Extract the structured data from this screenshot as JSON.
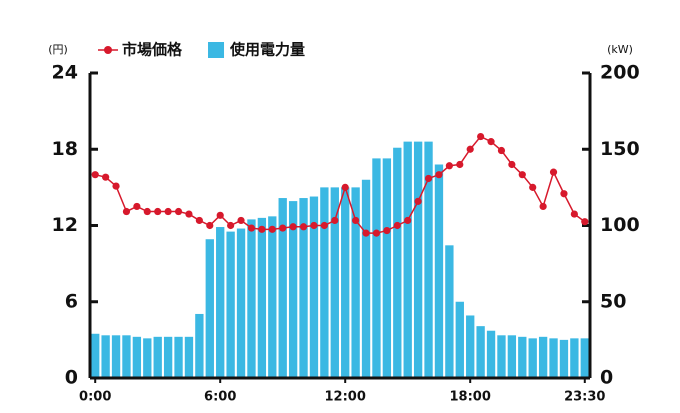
{
  "chart_data": {
    "type": "bar_line",
    "ylabel": "(円)",
    "y2label": "(kW)",
    "categories": [
      "0:00",
      null,
      null,
      null,
      null,
      null,
      null,
      null,
      null,
      null,
      null,
      null,
      "6:00",
      null,
      null,
      null,
      null,
      null,
      null,
      null,
      null,
      null,
      null,
      null,
      "12:00",
      null,
      null,
      null,
      null,
      null,
      null,
      null,
      null,
      null,
      null,
      null,
      "18:00",
      null,
      null,
      null,
      null,
      null,
      null,
      null,
      null,
      null,
      null,
      "23:30"
    ],
    "series": [
      {
        "name": "市場価格",
        "type": "line",
        "color": "#d7192c",
        "axis": "y",
        "values": [
          16.0,
          15.8,
          15.1,
          13.1,
          13.5,
          13.1,
          13.1,
          13.1,
          13.1,
          12.9,
          12.4,
          12.0,
          12.8,
          12.0,
          12.4,
          11.8,
          11.7,
          11.7,
          11.8,
          11.9,
          11.9,
          12.0,
          12.0,
          12.4,
          15.0,
          12.4,
          11.4,
          11.4,
          11.6,
          12.0,
          12.4,
          13.9,
          15.7,
          16.0,
          16.7,
          16.8,
          18.0,
          19.0,
          18.6,
          17.9,
          16.8,
          16.0,
          15.0,
          13.5,
          16.2,
          14.5,
          12.9,
          12.3
        ]
      },
      {
        "name": "使用電力量",
        "type": "bar",
        "color": "#3bb8e3",
        "axis": "y2",
        "values": [
          29,
          28,
          28,
          28,
          27,
          26,
          27,
          27,
          27,
          27,
          42,
          91,
          99,
          96,
          98,
          104,
          105,
          106,
          118,
          116,
          118,
          119,
          125,
          125,
          125,
          125,
          130,
          144,
          144,
          151,
          155,
          155,
          155,
          140,
          87,
          50,
          41,
          34,
          31,
          28,
          28,
          27,
          26,
          27,
          26,
          25,
          26,
          26
        ]
      }
    ],
    "ylim": [
      0,
      24
    ],
    "yticks": [
      0,
      6,
      12,
      18,
      24
    ],
    "y2lim": [
      0,
      200
    ],
    "y2ticks": [
      0,
      50,
      100,
      150,
      200
    ]
  }
}
